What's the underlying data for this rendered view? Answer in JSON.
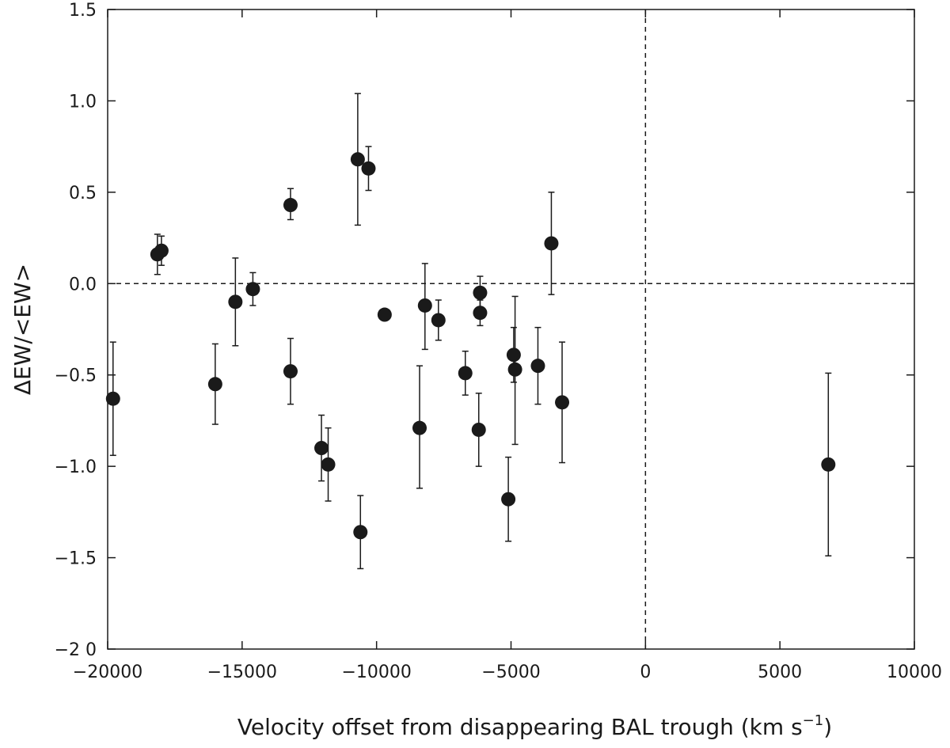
{
  "chart_data": {
    "type": "scatter",
    "title": "",
    "xlabel_main": "Velocity offset from disappearing BAL trough (km s",
    "xlabel_exp": "−1",
    "xlabel_close": ")",
    "ylabel": "ΔEW/<EW>",
    "xlim": [
      -20000,
      10000
    ],
    "ylim": [
      -2.0,
      1.5
    ],
    "xticks": [
      -20000,
      -15000,
      -10000,
      -5000,
      0,
      5000,
      10000
    ],
    "xtick_labels": [
      "−20000",
      "−15000",
      "−10000",
      "−5000",
      "0",
      "5000",
      "10000"
    ],
    "yticks": [
      -2.0,
      -1.5,
      -1.0,
      -0.5,
      0.0,
      0.5,
      1.0,
      1.5
    ],
    "ytick_labels": [
      "−2 0",
      "−1.5",
      "−1.0",
      "−0.5",
      "0.0",
      "0.5",
      "1.0",
      "1.5"
    ],
    "reference_lines": {
      "x": 0,
      "y": 0,
      "style": "dashed"
    },
    "marker_color": "#1a1a1a",
    "grid": false,
    "points": [
      {
        "x": -19800,
        "y": -0.63,
        "y_lo": -0.94,
        "y_hi": -0.32
      },
      {
        "x": -18150,
        "y": 0.16,
        "y_lo": 0.05,
        "y_hi": 0.27
      },
      {
        "x": -18000,
        "y": 0.18,
        "y_lo": 0.1,
        "y_hi": 0.26
      },
      {
        "x": -16000,
        "y": -0.55,
        "y_lo": -0.77,
        "y_hi": -0.33
      },
      {
        "x": -15250,
        "y": -0.1,
        "y_lo": -0.34,
        "y_hi": 0.14
      },
      {
        "x": -14600,
        "y": -0.03,
        "y_lo": -0.12,
        "y_hi": 0.06
      },
      {
        "x": -13200,
        "y": 0.43,
        "y_lo": 0.35,
        "y_hi": 0.52
      },
      {
        "x": -13200,
        "y": -0.48,
        "y_lo": -0.66,
        "y_hi": -0.3
      },
      {
        "x": -12050,
        "y": -0.9,
        "y_lo": -1.08,
        "y_hi": -0.72
      },
      {
        "x": -11800,
        "y": -0.99,
        "y_lo": -1.19,
        "y_hi": -0.79
      },
      {
        "x": -10700,
        "y": 0.68,
        "y_lo": 0.32,
        "y_hi": 1.04
      },
      {
        "x": -10600,
        "y": -1.36,
        "y_lo": -1.56,
        "y_hi": -1.16
      },
      {
        "x": -10300,
        "y": 0.63,
        "y_lo": 0.51,
        "y_hi": 0.75
      },
      {
        "x": -9700,
        "y": -0.17,
        "y_lo": -0.19,
        "y_hi": -0.15
      },
      {
        "x": -8400,
        "y": -0.79,
        "y_lo": -1.12,
        "y_hi": -0.45
      },
      {
        "x": -8200,
        "y": -0.12,
        "y_lo": -0.36,
        "y_hi": 0.11
      },
      {
        "x": -7700,
        "y": -0.2,
        "y_lo": -0.31,
        "y_hi": -0.09
      },
      {
        "x": -6700,
        "y": -0.49,
        "y_lo": -0.61,
        "y_hi": -0.37
      },
      {
        "x": -6150,
        "y": -0.05,
        "y_lo": -0.15,
        "y_hi": 0.04
      },
      {
        "x": -6150,
        "y": -0.16,
        "y_lo": -0.23,
        "y_hi": -0.09
      },
      {
        "x": -6200,
        "y": -0.8,
        "y_lo": -1.0,
        "y_hi": -0.6
      },
      {
        "x": -5100,
        "y": -1.18,
        "y_lo": -1.41,
        "y_hi": -0.95
      },
      {
        "x": -4900,
        "y": -0.39,
        "y_lo": -0.54,
        "y_hi": -0.24
      },
      {
        "x": -4850,
        "y": -0.47,
        "y_lo": -0.88,
        "y_hi": -0.07
      },
      {
        "x": -4000,
        "y": -0.45,
        "y_lo": -0.66,
        "y_hi": -0.24
      },
      {
        "x": -3500,
        "y": 0.22,
        "y_lo": -0.06,
        "y_hi": 0.5
      },
      {
        "x": -3100,
        "y": -0.65,
        "y_lo": -0.98,
        "y_hi": -0.32
      },
      {
        "x": 6800,
        "y": -0.99,
        "y_lo": -1.49,
        "y_hi": -0.49
      }
    ]
  }
}
